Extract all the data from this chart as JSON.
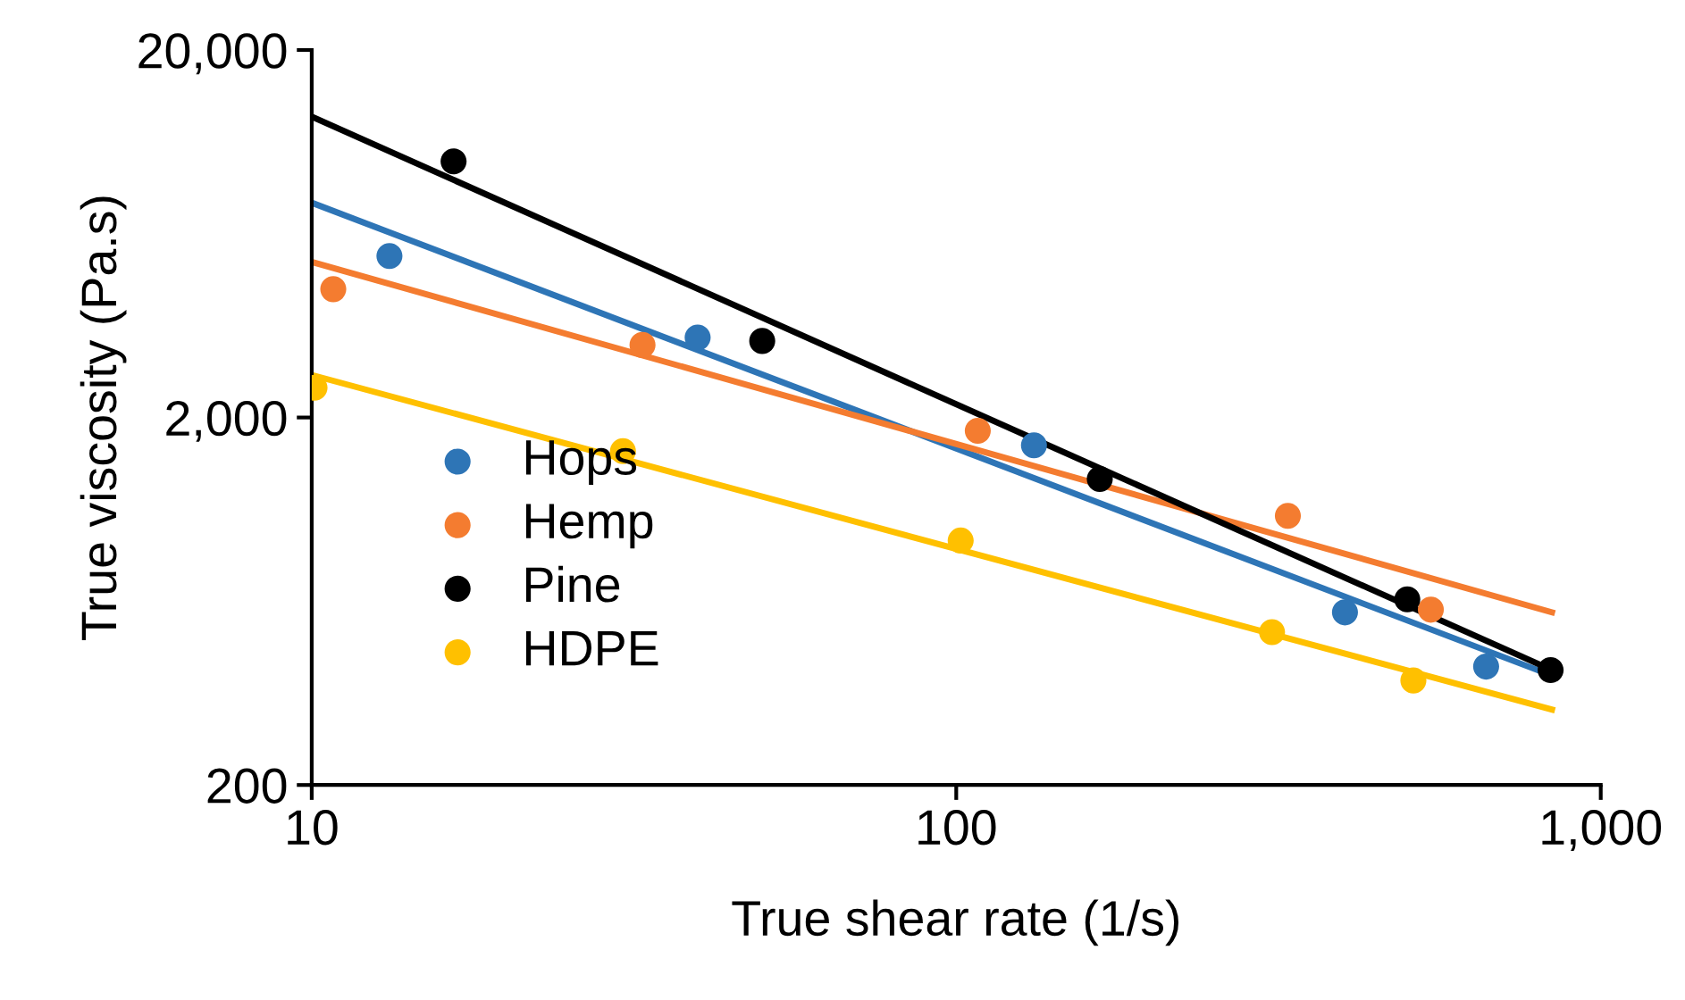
{
  "chart_data": {
    "type": "scatter",
    "xlabel": "True shear rate (1/s)",
    "ylabel": "True viscosity (Pa.s)",
    "log": "xy",
    "xlim": [
      10,
      1000
    ],
    "ylim": [
      200,
      20000
    ],
    "xticks": [
      10,
      100,
      {
        "value": 1000,
        "label": "1,000"
      }
    ],
    "yticks": [
      200,
      {
        "value": 2000,
        "label": "2,000"
      },
      {
        "value": 20000,
        "label": "20,000"
      }
    ],
    "legend": "left",
    "marker": "circle",
    "series": [
      {
        "name": "Hops",
        "color": "#2e75b6",
        "x": [
          13.2,
          39.7,
          132,
          401,
          664
        ],
        "values": [
          5500,
          3300,
          1680,
          590,
          420
        ]
      },
      {
        "name": "Hemp",
        "color": "#f47c30",
        "x": [
          10.8,
          32.6,
          108,
          327,
          545
        ],
        "values": [
          4470,
          3150,
          1840,
          1080,
          600
        ]
      },
      {
        "name": "Pine",
        "color": "#000000",
        "x": [
          16.6,
          50,
          167,
          501,
          836
        ],
        "values": [
          9950,
          3230,
          1360,
          640,
          411
        ]
      },
      {
        "name": "HDPE",
        "color": "#ffc000",
        "x": [
          10.1,
          30.4,
          101.6,
          309,
          512
        ],
        "values": [
          2410,
          1620,
          925,
          521,
          385
        ]
      },
      {
        "type": "line",
        "marker": "none",
        "color": "#2e75b6",
        "x": [
          10,
          840
        ],
        "values": [
          7680,
          397
        ]
      },
      {
        "type": "line",
        "marker": "none",
        "color": "#f47c30",
        "x": [
          10,
          840
        ],
        "values": [
          5300,
          590
        ]
      },
      {
        "type": "line",
        "marker": "none",
        "color": "#000000",
        "x": [
          10,
          840
        ],
        "values": [
          13180,
          411
        ]
      },
      {
        "type": "line",
        "marker": "none",
        "color": "#ffc000",
        "x": [
          10,
          840
        ],
        "values": [
          2610,
          321
        ]
      }
    ]
  }
}
